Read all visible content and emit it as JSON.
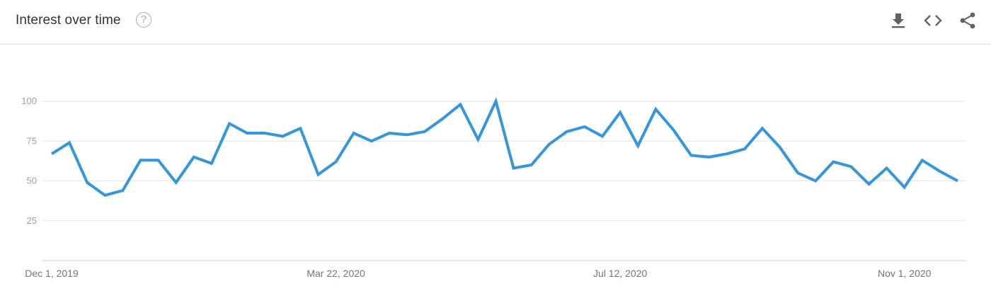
{
  "header": {
    "title": "Interest over time",
    "help_glyph": "?"
  },
  "toolbar": {
    "icons": [
      "download-icon",
      "embed-code-icon",
      "share-icon"
    ]
  },
  "colors": {
    "line": "#3596dd",
    "grid": "#e6e6e6",
    "axis": "#c8c8c8"
  },
  "chart_data": {
    "type": "line",
    "title": "Interest over time",
    "xlabel": "",
    "ylabel": "",
    "ylim": [
      0,
      100
    ],
    "yticks": [
      25,
      50,
      75,
      100
    ],
    "grid": true,
    "x_start": "2019-12-01",
    "x_end": "2020-11-22",
    "x_tick_labels": [
      {
        "date": "2019-12-01",
        "label": "Dec 1, 2019"
      },
      {
        "date": "2020-03-22",
        "label": "Mar 22, 2020"
      },
      {
        "date": "2020-07-12",
        "label": "Jul 12, 2020"
      },
      {
        "date": "2020-11-01",
        "label": "Nov 1, 2020"
      }
    ],
    "series": [
      {
        "values": [
          67,
          74,
          49,
          41,
          44,
          63,
          63,
          49,
          65,
          61,
          86,
          80,
          80,
          78,
          83,
          54,
          62,
          80,
          75,
          80,
          79,
          81,
          89,
          98,
          76,
          100,
          58,
          60,
          73,
          81,
          84,
          78,
          93,
          72,
          95,
          82,
          66,
          65,
          67,
          70,
          83,
          71,
          55,
          50,
          62,
          59,
          48,
          58,
          46,
          63,
          56,
          50
        ]
      }
    ]
  }
}
